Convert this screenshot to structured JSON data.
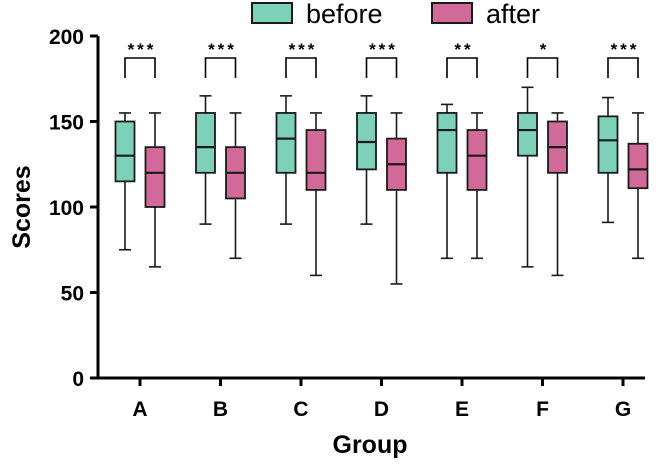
{
  "chart_data": {
    "type": "box",
    "title": "",
    "xlabel": "Group",
    "ylabel": "Scores",
    "ylim": [
      0,
      200
    ],
    "yticks": [
      0,
      50,
      100,
      150,
      200
    ],
    "categories": [
      "A",
      "B",
      "C",
      "D",
      "E",
      "F",
      "G"
    ],
    "legend": {
      "position": "top",
      "entries": [
        "before",
        "after"
      ]
    },
    "colors": {
      "before": "#7dd1b9",
      "after": "#d16a98",
      "stroke": "#1a1a1a"
    },
    "series": [
      {
        "name": "before",
        "boxes": [
          {
            "min": 75,
            "q1": 115,
            "median": 130,
            "q3": 150,
            "max": 155
          },
          {
            "min": 90,
            "q1": 120,
            "median": 135,
            "q3": 155,
            "max": 165
          },
          {
            "min": 90,
            "q1": 120,
            "median": 140,
            "q3": 155,
            "max": 165
          },
          {
            "min": 90,
            "q1": 122,
            "median": 138,
            "q3": 155,
            "max": 165
          },
          {
            "min": 70,
            "q1": 120,
            "median": 145,
            "q3": 155,
            "max": 160
          },
          {
            "min": 65,
            "q1": 130,
            "median": 145,
            "q3": 155,
            "max": 170
          },
          {
            "min": 91,
            "q1": 120,
            "median": 139,
            "q3": 153,
            "max": 164
          }
        ]
      },
      {
        "name": "after",
        "boxes": [
          {
            "min": 65,
            "q1": 100,
            "median": 120,
            "q3": 135,
            "max": 155
          },
          {
            "min": 70,
            "q1": 105,
            "median": 120,
            "q3": 135,
            "max": 155
          },
          {
            "min": 60,
            "q1": 110,
            "median": 120,
            "q3": 145,
            "max": 155
          },
          {
            "min": 55,
            "q1": 110,
            "median": 125,
            "q3": 140,
            "max": 155
          },
          {
            "min": 70,
            "q1": 110,
            "median": 130,
            "q3": 145,
            "max": 155
          },
          {
            "min": 60,
            "q1": 120,
            "median": 135,
            "q3": 150,
            "max": 155
          },
          {
            "min": 70,
            "q1": 111,
            "median": 122,
            "q3": 137,
            "max": 155
          }
        ]
      }
    ],
    "significance": [
      {
        "category": "A",
        "label": "***"
      },
      {
        "category": "B",
        "label": "***"
      },
      {
        "category": "C",
        "label": "***"
      },
      {
        "category": "D",
        "label": "***"
      },
      {
        "category": "E",
        "label": "**"
      },
      {
        "category": "F",
        "label": "*"
      },
      {
        "category": "G",
        "label": "***"
      }
    ]
  }
}
